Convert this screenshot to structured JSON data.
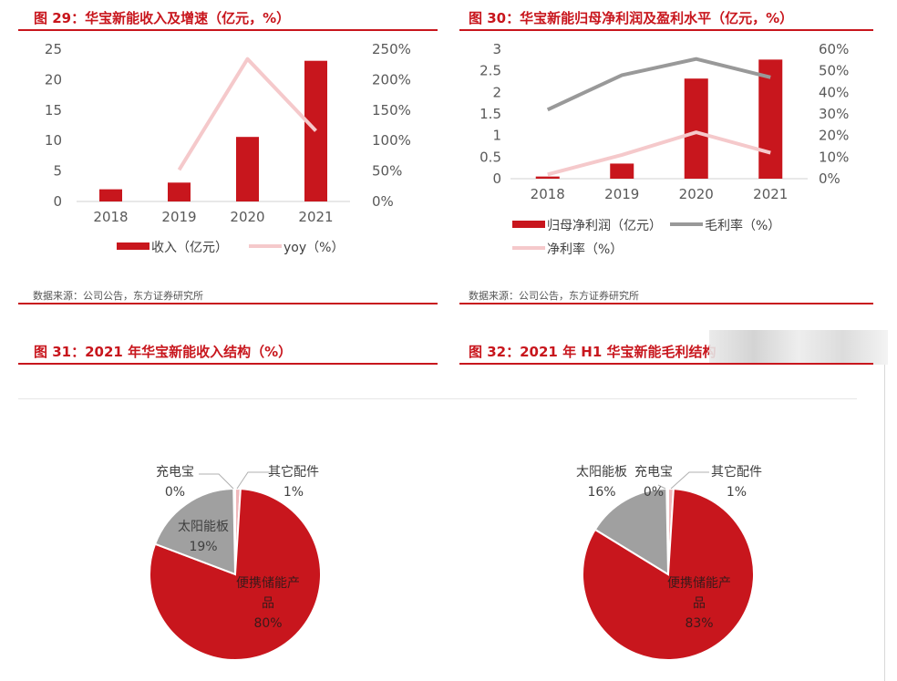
{
  "colors": {
    "red": "#c8161d",
    "pink": "#f5c9cb",
    "gray": "#a0a0a0",
    "grayline": "#999999"
  },
  "fig29": {
    "title": "图 29：华宝新能收入及增速（亿元，%）",
    "source": "数据来源：公司公告，东方证券研究所"
  },
  "fig30": {
    "title": "图 30：华宝新能归母净利润及盈利水平（亿元，%）",
    "source": "数据来源：公司公告，东方证券研究所"
  },
  "fig31": {
    "title": "图 31：2021 年华宝新能收入结构（%）"
  },
  "fig32": {
    "title": "图 32：2021 年 H1 华宝新能毛利结构"
  },
  "chart_data": [
    {
      "type": "bar",
      "title": "图 29：华宝新能收入及增速（亿元，%）",
      "categories": [
        "2018",
        "2019",
        "2020",
        "2021"
      ],
      "y_ticks": [
        "0",
        "5",
        "10",
        "15",
        "20",
        "25"
      ],
      "y2_ticks": [
        "0%",
        "50%",
        "100%",
        "150%",
        "200%",
        "250%"
      ],
      "ylim": [
        0,
        25
      ],
      "y2lim": [
        0,
        250
      ],
      "series": [
        {
          "name": "收入（亿元）",
          "kind": "bar",
          "axis": "left",
          "values": [
            2.0,
            3.1,
            10.6,
            23.1
          ]
        },
        {
          "name": "yoy（%）",
          "kind": "line",
          "axis": "right",
          "values": [
            null,
            52,
            234,
            116
          ]
        }
      ],
      "legend": "bottom"
    },
    {
      "type": "bar",
      "title": "图 30：华宝新能归母净利润及盈利水平（亿元，%）",
      "categories": [
        "2018",
        "2019",
        "2020",
        "2021"
      ],
      "y_ticks": [
        "0",
        "0.5",
        "1",
        "1.5",
        "2",
        "2.5",
        "3"
      ],
      "y2_ticks": [
        "0%",
        "10%",
        "20%",
        "30%",
        "40%",
        "50%",
        "60%"
      ],
      "ylim": [
        0,
        3
      ],
      "y2lim": [
        0,
        60
      ],
      "series": [
        {
          "name": "归母净利润（亿元）",
          "kind": "bar",
          "axis": "left",
          "values": [
            0.05,
            0.35,
            2.32,
            2.76
          ]
        },
        {
          "name": "毛利率（%）",
          "kind": "line",
          "axis": "right",
          "values": [
            32,
            48,
            55.5,
            47
          ]
        },
        {
          "name": "净利率（%）",
          "kind": "line",
          "axis": "right",
          "values": [
            2,
            11,
            21.5,
            12
          ]
        }
      ],
      "legend": "bottom"
    },
    {
      "type": "pie",
      "title": "图 31：2021 年华宝新能收入结构（%）",
      "slices": [
        {
          "label": "便携储能产品",
          "value": 80,
          "display": "80%"
        },
        {
          "label": "太阳能板",
          "value": 19,
          "display": "19%"
        },
        {
          "label": "充电宝",
          "value": 0.3,
          "display": "0%"
        },
        {
          "label": "其它配件",
          "value": 1,
          "display": "1%"
        }
      ]
    },
    {
      "type": "pie",
      "title": "图 32：2021 年 H1 华宝新能毛利结构",
      "slices": [
        {
          "label": "便携储能产品",
          "value": 83,
          "display": "83%"
        },
        {
          "label": "太阳能板",
          "value": 16,
          "display": "16%"
        },
        {
          "label": "充电宝",
          "value": 0.3,
          "display": "0%"
        },
        {
          "label": "其它配件",
          "value": 1,
          "display": "1%"
        }
      ]
    }
  ]
}
